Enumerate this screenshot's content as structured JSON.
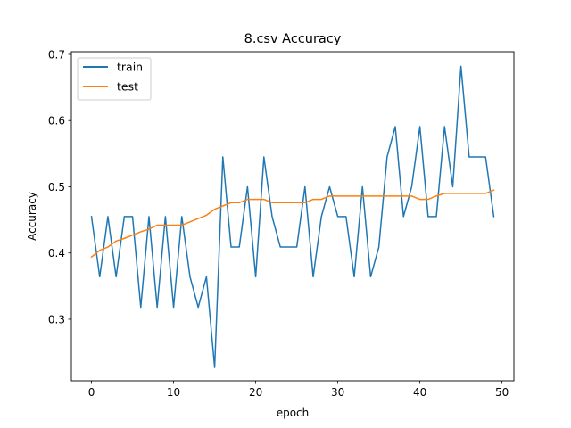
{
  "chart_data": {
    "type": "line",
    "title": "8.csv Accuracy",
    "xlabel": "epoch",
    "ylabel": "Accuracy",
    "xlim": [
      -2.45,
      51.45
    ],
    "ylim": [
      0.207,
      0.704
    ],
    "xticks": [
      0,
      10,
      20,
      30,
      40,
      50
    ],
    "yticks": [
      0.3,
      0.4,
      0.5,
      0.6,
      0.7
    ],
    "legend_position": "top-left",
    "grid": false,
    "x": [
      0,
      1,
      2,
      3,
      4,
      5,
      6,
      7,
      8,
      9,
      10,
      11,
      12,
      13,
      14,
      15,
      16,
      17,
      18,
      19,
      20,
      21,
      22,
      23,
      24,
      25,
      26,
      27,
      28,
      29,
      30,
      31,
      32,
      33,
      34,
      35,
      36,
      37,
      38,
      39,
      40,
      41,
      42,
      43,
      44,
      45,
      46,
      47,
      48,
      49
    ],
    "series": [
      {
        "name": "train",
        "color": "#1f77b4",
        "values": [
          0.455,
          0.364,
          0.455,
          0.364,
          0.455,
          0.455,
          0.318,
          0.455,
          0.318,
          0.455,
          0.318,
          0.455,
          0.364,
          0.318,
          0.364,
          0.227,
          0.545,
          0.409,
          0.409,
          0.5,
          0.364,
          0.545,
          0.455,
          0.409,
          0.409,
          0.409,
          0.5,
          0.364,
          0.455,
          0.5,
          0.455,
          0.455,
          0.364,
          0.5,
          0.364,
          0.409,
          0.545,
          0.591,
          0.455,
          0.5,
          0.591,
          0.455,
          0.455,
          0.591,
          0.5,
          0.682,
          0.545,
          0.545,
          0.545,
          0.455
        ]
      },
      {
        "name": "test",
        "color": "#ff7f0e",
        "values": [
          0.394,
          0.404,
          0.409,
          0.418,
          0.422,
          0.427,
          0.432,
          0.436,
          0.442,
          0.442,
          0.442,
          0.442,
          0.447,
          0.452,
          0.457,
          0.466,
          0.471,
          0.476,
          0.476,
          0.481,
          0.481,
          0.481,
          0.476,
          0.476,
          0.476,
          0.476,
          0.476,
          0.481,
          0.481,
          0.486,
          0.486,
          0.486,
          0.486,
          0.486,
          0.486,
          0.486,
          0.486,
          0.486,
          0.486,
          0.486,
          0.481,
          0.481,
          0.486,
          0.49,
          0.49,
          0.49,
          0.49,
          0.49,
          0.49,
          0.495
        ]
      }
    ]
  }
}
